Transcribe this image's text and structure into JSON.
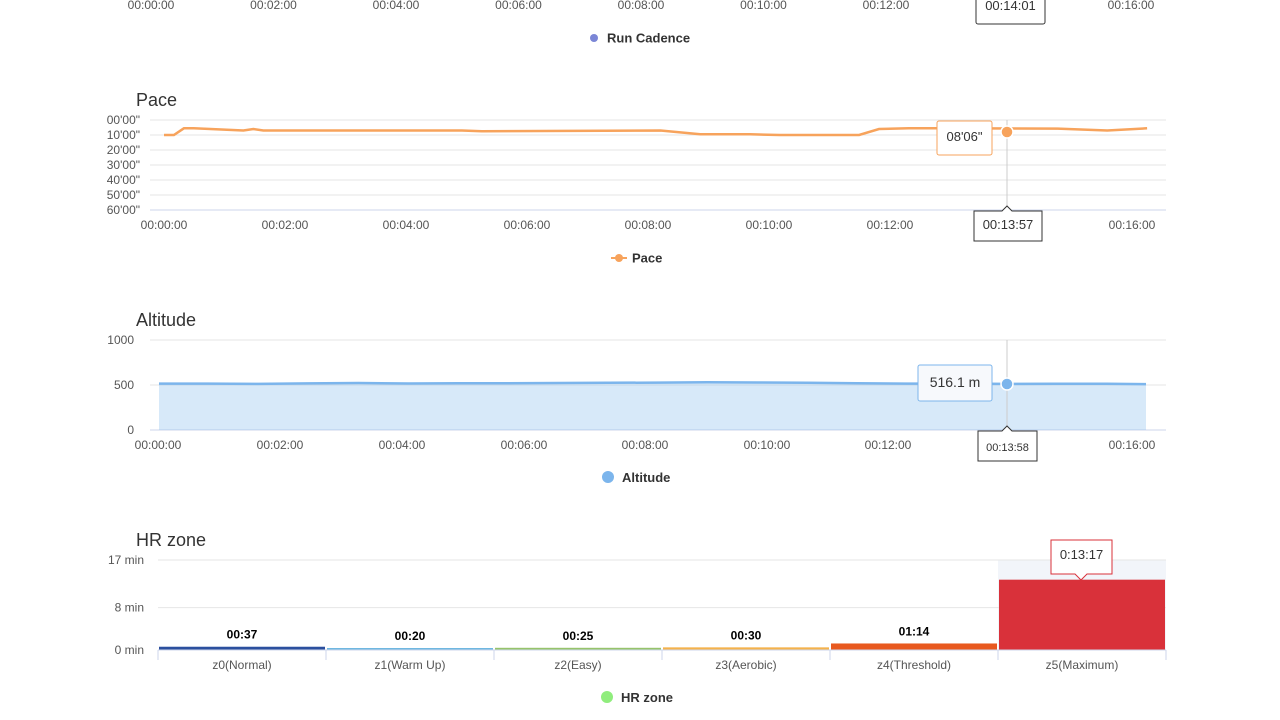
{
  "chart_data": [
    {
      "type": "line",
      "partial": true,
      "x_ticks": [
        "00:00:00",
        "00:02:00",
        "00:04:00",
        "00:06:00",
        "00:08:00",
        "00:10:00",
        "00:12:00",
        "00:14:00",
        "00:16:00"
      ],
      "legend": {
        "name": "Run Cadence",
        "color": "#7b86d6"
      },
      "tooltip_x": "00:14:01"
    },
    {
      "type": "line",
      "title": "Pace",
      "y_ticks": [
        "00'00\"",
        "10'00\"",
        "20'00\"",
        "30'00\"",
        "40'00\"",
        "50'00\"",
        "60'00\""
      ],
      "y_range_minutes": [
        0,
        60
      ],
      "y_reversed": true,
      "x_ticks": [
        "00:00:00",
        "00:02:00",
        "00:04:00",
        "00:06:00",
        "00:08:00",
        "00:10:00",
        "00:12:00",
        "00:14:00",
        "00:16:00"
      ],
      "x_range_seconds": [
        0,
        1000
      ],
      "series": [
        {
          "name": "Pace",
          "color": "#f7a35c",
          "x_seconds": [
            0,
            10,
            20,
            30,
            80,
            90,
            100,
            120,
            300,
            320,
            500,
            540,
            590,
            620,
            700,
            720,
            750,
            780,
            900,
            950,
            990
          ],
          "pace_min": [
            10,
            10,
            5.5,
            5.5,
            7,
            6,
            7,
            7,
            7,
            7.5,
            7,
            9.5,
            9.5,
            10,
            10,
            6,
            5.5,
            5.5,
            5.7,
            7,
            5.5
          ]
        }
      ],
      "tooltip": {
        "value": "08'06\"",
        "x": "00:13:57"
      },
      "legend": {
        "name": "Pace",
        "color": "#f7a35c"
      }
    },
    {
      "type": "area",
      "title": "Altitude",
      "y_ticks": [
        "0",
        "500",
        "1000"
      ],
      "y_range": [
        0,
        1000
      ],
      "x_ticks": [
        "00:00:00",
        "00:02:00",
        "00:04:00",
        "00:06:00",
        "00:08:00",
        "00:10:00",
        "00:12:00",
        "00:14:00",
        "00:16:00"
      ],
      "x_range_seconds": [
        0,
        1000
      ],
      "series": [
        {
          "name": "Altitude",
          "color": "#7cb5ec",
          "x_seconds": [
            0,
            50,
            100,
            150,
            200,
            250,
            300,
            350,
            400,
            450,
            500,
            550,
            600,
            650,
            700,
            750,
            800,
            850,
            900,
            950,
            990
          ],
          "values": [
            515,
            516,
            512,
            518,
            522,
            517,
            519,
            520,
            522,
            525,
            527,
            530,
            528,
            524,
            519,
            516,
            516,
            512,
            514,
            513,
            510
          ]
        }
      ],
      "tooltip": {
        "value": "516.1 m",
        "x": "00:13:58"
      },
      "legend": {
        "name": "Altitude",
        "color": "#7cb5ec"
      }
    },
    {
      "type": "bar",
      "title": "HR zone",
      "y_ticks": [
        "0 min",
        "8 min",
        "17 min"
      ],
      "y_range_minutes": [
        0,
        17
      ],
      "categories": [
        "z0(Normal)",
        "z1(Warm Up)",
        "z2(Easy)",
        "z3(Aerobic)",
        "z4(Threshold)",
        "z5(Maximum)"
      ],
      "labels": [
        "00:37",
        "00:20",
        "00:25",
        "00:30",
        "01:14",
        "13:17"
      ],
      "values_minutes": [
        0.617,
        0.333,
        0.417,
        0.5,
        1.233,
        13.283
      ],
      "colors": [
        "#2b4f9e",
        "#6fb7e0",
        "#96c36b",
        "#f4b24c",
        "#e8591f",
        "#d9313a"
      ],
      "tooltip": {
        "value": "0:13:17"
      },
      "legend": {
        "name": "HR zone",
        "color": "#90ed7d"
      }
    }
  ]
}
